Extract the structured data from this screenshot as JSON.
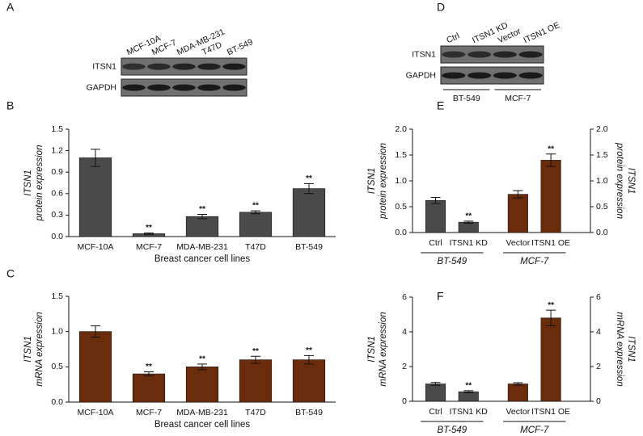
{
  "blots": [
    {
      "panel": "A",
      "rows": [
        "ITSN1",
        "GAPDH"
      ],
      "lanes": [
        "MCF-10A",
        "MCF-7",
        "MDA-MB-231",
        "T47D",
        "BT-549"
      ]
    },
    {
      "panel": "D",
      "rows": [
        "ITSN1",
        "GAPDH"
      ],
      "lanes": [
        "Ctrl",
        "ITSN1 KD",
        "Vector",
        "ITSN1 OE"
      ],
      "groups": [
        "BT-549",
        "MCF-7"
      ]
    }
  ],
  "chart_data": [
    {
      "type": "bar",
      "panel": "B",
      "ylabel": [
        "ITSN1",
        "protein expression"
      ],
      "xlabel": "Breast cancer cell lines",
      "categories": [
        "MCF-10A",
        "MCF-7",
        "MDA-MB-231",
        "T47D",
        "BT-549"
      ],
      "values": [
        1.1,
        0.04,
        0.28,
        0.34,
        0.67
      ],
      "errors": [
        0.12,
        0.01,
        0.03,
        0.02,
        0.07
      ],
      "annotations": [
        null,
        "**",
        "**",
        "**",
        "**"
      ],
      "color": "#4a4a4a",
      "ylim": [
        0,
        1.5
      ],
      "yticks": [
        {
          "value": 0,
          "label": "0.0"
        },
        0.3,
        0.6,
        0.9,
        1.2,
        1.5
      ]
    },
    {
      "type": "bar",
      "panel": "C",
      "ylabel": [
        "ITSN1",
        "mRNA expression"
      ],
      "xlabel": "Breast cancer cell lines",
      "categories": [
        "MCF-10A",
        "MCF-7",
        "MDA-MB-231",
        "T47D",
        "BT-549"
      ],
      "values": [
        1.0,
        0.4,
        0.5,
        0.6,
        0.6
      ],
      "errors": [
        0.08,
        0.03,
        0.04,
        0.05,
        0.06
      ],
      "annotations": [
        null,
        "**",
        "**",
        "**",
        "**"
      ],
      "color": "#6b2c0c",
      "ylim": [
        0,
        1.5
      ],
      "yticks": [
        {
          "value": 0,
          "label": "0.0"
        },
        0.5,
        {
          "value": 1,
          "label": "1.0"
        },
        1.5
      ]
    },
    {
      "type": "bar",
      "panel": "E",
      "ylabel": [
        "ITSN1",
        "protein expression"
      ],
      "y2label": [
        "ITSN1",
        "protein expression"
      ],
      "groups": [
        {
          "name": "BT-549",
          "color": "#4a4a4a",
          "categories": [
            "Ctrl",
            "ITSN1 KD"
          ],
          "values": [
            0.62,
            0.2
          ],
          "errors": [
            0.06,
            0.02
          ],
          "annotations": [
            null,
            "**"
          ]
        },
        {
          "name": "MCF-7",
          "color": "#6b2c0c",
          "categories": [
            "Vector",
            "ITSN1 OE"
          ],
          "values": [
            0.74,
            1.4
          ],
          "errors": [
            0.07,
            0.12
          ],
          "annotations": [
            null,
            "**"
          ]
        }
      ],
      "ylim": [
        0,
        2
      ],
      "yticks": [
        {
          "value": 0,
          "label": "0.0"
        },
        0.5,
        {
          "value": 1,
          "label": "1.0"
        },
        1.5,
        {
          "value": 2,
          "label": "2.0"
        }
      ],
      "y2lim": [
        0,
        2
      ],
      "y2ticks": [
        {
          "value": 0,
          "label": "0.0"
        },
        0.5,
        {
          "value": 1,
          "label": "1.0"
        },
        1.5,
        {
          "value": 2,
          "label": "2.0"
        }
      ]
    },
    {
      "type": "bar",
      "panel": "F",
      "ylabel": [
        "ITSN1",
        "mRNA expression"
      ],
      "y2label": [
        "ITSN1",
        "mRNA expression"
      ],
      "groups": [
        {
          "name": "BT-549",
          "color": "#4a4a4a",
          "categories": [
            "Ctrl",
            "ITSN1 KD"
          ],
          "values": [
            1.0,
            0.55
          ],
          "errors": [
            0.08,
            0.06
          ],
          "annotations": [
            null,
            "**"
          ]
        },
        {
          "name": "MCF-7",
          "color": "#6b2c0c",
          "categories": [
            "Vector",
            "ITSN1 OE"
          ],
          "values": [
            1.0,
            4.8
          ],
          "errors": [
            0.07,
            0.45
          ],
          "annotations": [
            null,
            "**"
          ]
        }
      ],
      "ylim": [
        0,
        6
      ],
      "yticks": [
        0,
        2,
        4,
        6
      ],
      "y2lim": [
        0,
        6
      ],
      "y2ticks": [
        0,
        2,
        4,
        6
      ]
    }
  ]
}
